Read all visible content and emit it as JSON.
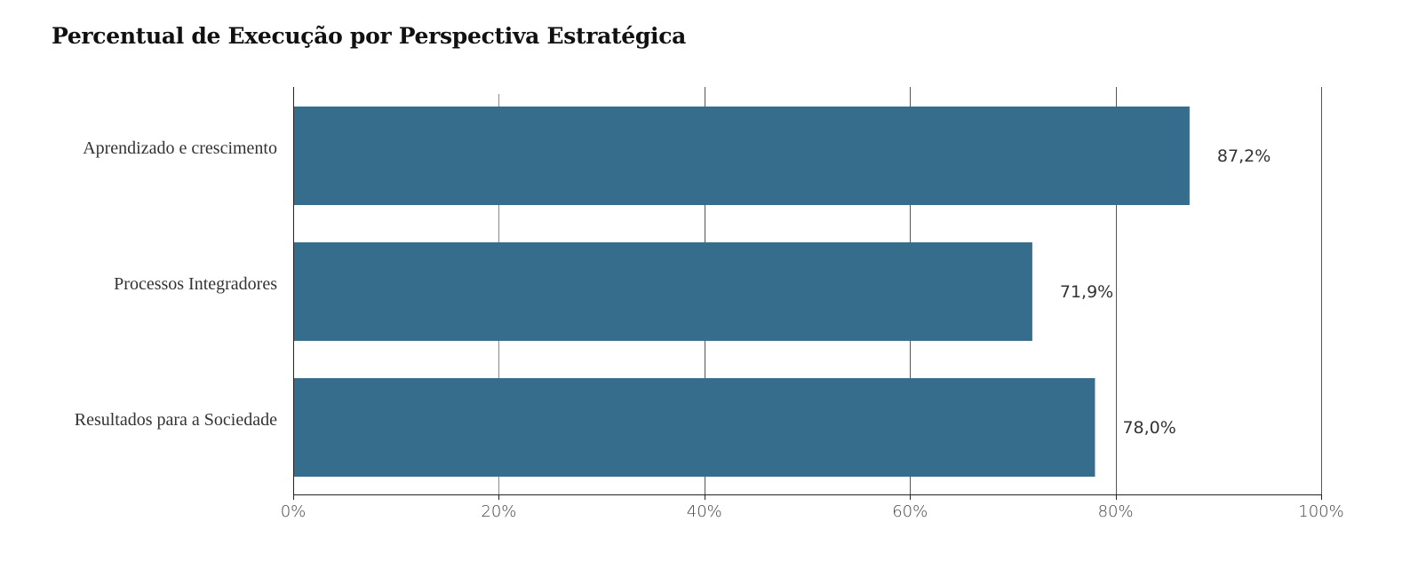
{
  "chart_data": {
    "type": "bar",
    "orientation": "horizontal",
    "title": "Percentual de Execução por Perspectiva Estratégica",
    "categories": [
      "Aprendizado e crescimento",
      "Processos Integradores",
      "Resultados para a Sociedade"
    ],
    "values": [
      87.2,
      71.9,
      78.0
    ],
    "data_labels": [
      "87,2%",
      "71,9%",
      "78,0%"
    ],
    "xlim": [
      0,
      100
    ],
    "x_ticks": [
      0,
      20,
      40,
      60,
      80,
      100
    ],
    "x_tick_labels": [
      "0%",
      "20%",
      "40%",
      "60%",
      "80%",
      "100%"
    ],
    "xlabel": "",
    "ylabel": "",
    "grid": "vertical",
    "bar_color": "#366c8c"
  }
}
